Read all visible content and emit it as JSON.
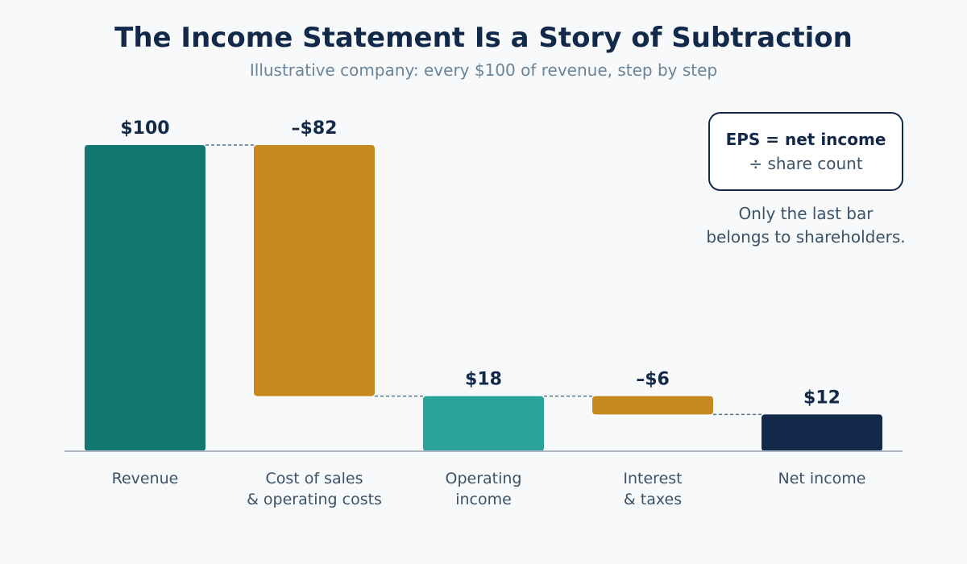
{
  "chart_data": {
    "type": "bar",
    "subtype": "waterfall",
    "title": "The Income Statement Is a Story of Subtraction",
    "subtitle": "Illustrative company: every $100 of revenue, step by step",
    "categories": [
      [
        "Revenue"
      ],
      [
        "Cost of sales",
        "& operating costs"
      ],
      [
        "Operating",
        "income"
      ],
      [
        "Interest",
        "& taxes"
      ],
      [
        "Net income"
      ]
    ],
    "values": [
      100,
      -82,
      18,
      -6,
      12
    ],
    "kinds": [
      "total",
      "decrease",
      "total",
      "decrease",
      "total"
    ],
    "value_labels": [
      "$100",
      "–$82",
      "$18",
      "–$6",
      "$12"
    ],
    "colors": [
      "#117770",
      "#c8891f",
      "#2aa39a",
      "#c8891f",
      "#13294a"
    ],
    "ylim": [
      0,
      100
    ],
    "grid": false,
    "connector_color": "#5a7388"
  },
  "callout": {
    "line1": "EPS = net income",
    "line2": "÷ share count",
    "note_line1": "Only the last bar",
    "note_line2": "belongs to shareholders."
  }
}
